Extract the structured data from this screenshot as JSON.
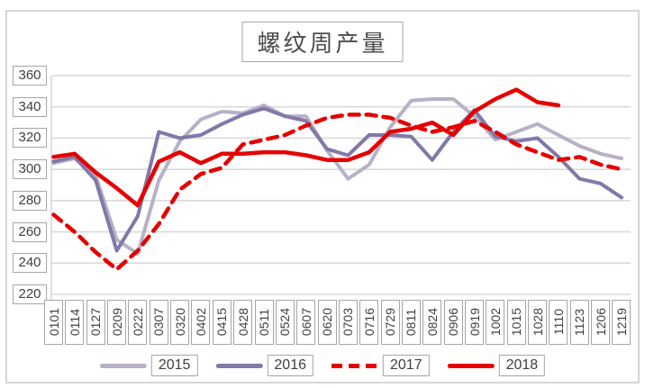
{
  "chart_data": {
    "type": "line",
    "title": "螺纹周产量",
    "categories": [
      "0101",
      "0114",
      "0127",
      "0209",
      "0222",
      "0307",
      "0320",
      "0402",
      "0415",
      "0428",
      "0511",
      "0524",
      "0607",
      "0620",
      "0703",
      "0716",
      "0729",
      "0811",
      "0824",
      "0906",
      "0919",
      "1002",
      "1015",
      "1028",
      "1110",
      "1123",
      "1206",
      "1219"
    ],
    "series": [
      {
        "name": "2015",
        "color": "#b7b0c7",
        "style": "solid",
        "width": 4,
        "values": [
          304,
          307,
          296,
          255,
          246,
          293,
          318,
          332,
          337,
          336,
          341,
          334,
          334,
          312,
          294,
          303,
          327,
          344,
          345,
          345,
          334,
          319,
          324,
          329,
          322,
          315,
          310,
          307
        ]
      },
      {
        "name": "2016",
        "color": "#8278a8",
        "style": "solid",
        "width": 4,
        "values": [
          305,
          308,
          293,
          248,
          270,
          324,
          320,
          322,
          329,
          335,
          339,
          334,
          331,
          313,
          309,
          322,
          322,
          321,
          306,
          324,
          338,
          321,
          318,
          320,
          308,
          294,
          291,
          282
        ]
      },
      {
        "name": "2017",
        "color": "#e60000",
        "style": "dashed",
        "width": 4.5,
        "values": [
          271,
          260,
          247,
          236,
          248,
          265,
          287,
          297,
          301,
          316,
          319,
          322,
          328,
          333,
          335,
          335,
          333,
          328,
          324,
          327,
          331,
          324,
          316,
          311,
          306,
          308,
          303,
          300
        ]
      },
      {
        "name": "2018",
        "color": "#e60000",
        "style": "solid",
        "width": 4.5,
        "values": [
          308,
          310,
          298,
          288,
          277,
          305,
          311,
          304,
          310,
          310,
          311,
          311,
          309,
          306,
          306,
          311,
          324,
          326,
          330,
          322,
          337,
          345,
          351,
          343,
          341
        ]
      }
    ],
    "y_ticks": [
      360,
      340,
      320,
      300,
      280,
      260,
      240,
      220
    ],
    "ylim": [
      220,
      360
    ],
    "grid": true,
    "legend_position": "bottom",
    "axis_label_color": "#404040",
    "gridline_color": "#d9d9d9"
  }
}
